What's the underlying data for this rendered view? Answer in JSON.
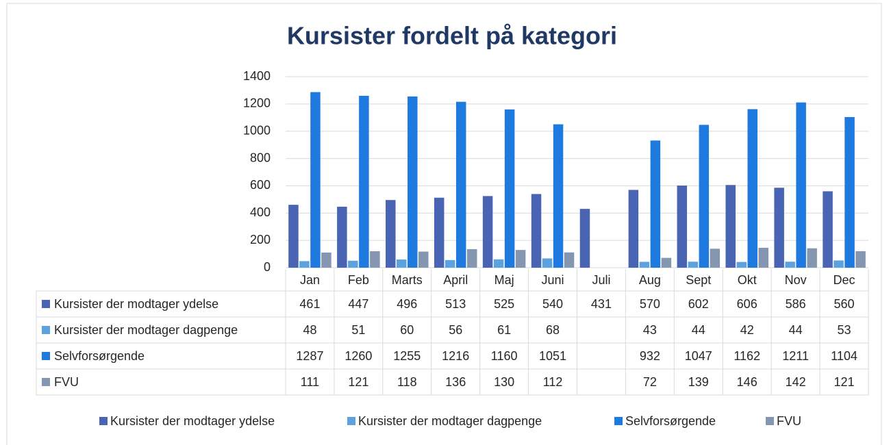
{
  "chart_data": {
    "type": "bar",
    "title": "Kursister fordelt på kategori",
    "categories": [
      "Jan",
      "Feb",
      "Marts",
      "April",
      "Maj",
      "Juni",
      "Juli",
      "Aug",
      "Sept",
      "Okt",
      "Nov",
      "Dec"
    ],
    "series": [
      {
        "name": "Kursister der modtager ydelse",
        "color": "#4a64b4",
        "values": [
          461,
          447,
          496,
          513,
          525,
          540,
          431,
          570,
          602,
          606,
          586,
          560
        ]
      },
      {
        "name": "Kursister der modtager dagpenge",
        "color": "#5ca2de",
        "values": [
          48,
          51,
          60,
          56,
          61,
          68,
          null,
          43,
          44,
          42,
          44,
          53
        ]
      },
      {
        "name": "Selvforsørgende",
        "color": "#1f7ae0",
        "values": [
          1287,
          1260,
          1255,
          1216,
          1160,
          1051,
          null,
          932,
          1047,
          1162,
          1211,
          1104
        ]
      },
      {
        "name": "FVU",
        "color": "#8496b0",
        "values": [
          111,
          121,
          118,
          136,
          130,
          112,
          null,
          72,
          139,
          146,
          142,
          121
        ]
      }
    ],
    "ylim": [
      0,
      1400
    ],
    "yticks": [
      0,
      200,
      400,
      600,
      800,
      1000,
      1200,
      1400
    ],
    "grid": true,
    "legend": "bottom",
    "data_table": true
  }
}
